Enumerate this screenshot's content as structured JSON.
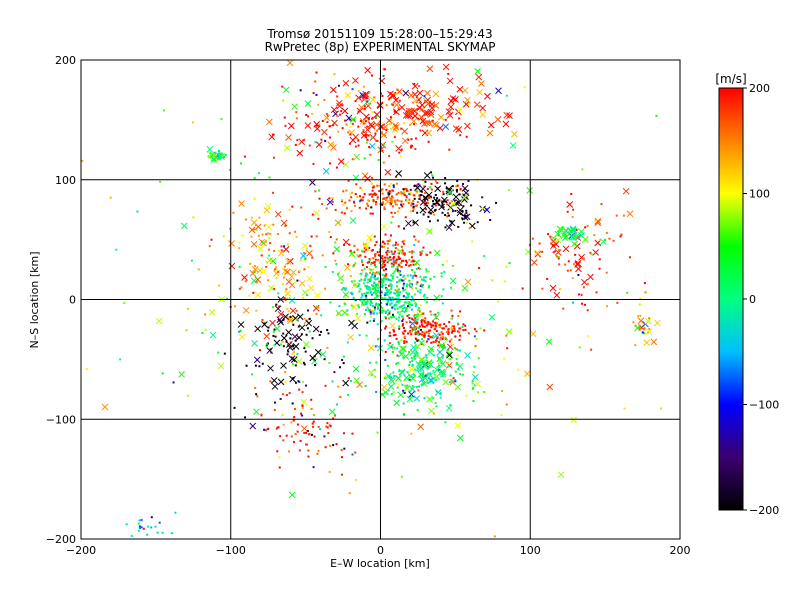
{
  "chart_data": {
    "type": "scatter",
    "title": "Tromsø 20151109 15:28:00–15:29:43",
    "subtitle": "RwPretec (8p) EXPERIMENTAL SKYMAP",
    "xlabel": "E–W location [km]",
    "ylabel": "N–S location [km]",
    "xlim": [
      -200,
      200
    ],
    "ylim": [
      -200,
      200
    ],
    "x_ticks": [
      "−200",
      "−100",
      "0",
      "100",
      "200"
    ],
    "y_ticks": [
      "−200",
      "−100",
      "0",
      "100",
      "200"
    ],
    "grid": true,
    "colorbar": {
      "label": "[m/s]",
      "range": [
        -200,
        200
      ],
      "ticks": [
        "200",
        "100",
        "0",
        "−100",
        "−200"
      ],
      "colors": [
        "#000000",
        "#3a0070",
        "#0000ff",
        "#00bfff",
        "#00ff80",
        "#00ff00",
        "#ffff00",
        "#ff8000",
        "#ff0000"
      ]
    },
    "clusters": [
      {
        "region": "north",
        "x_center": -10,
        "y_center": 150,
        "x_spread": 60,
        "y_spread": 35,
        "velocity": 195,
        "count": 260,
        "marker": "mixed"
      },
      {
        "region": "north-east",
        "x_center": 40,
        "y_center": 160,
        "x_spread": 55,
        "y_spread": 30,
        "velocity": 190,
        "count": 70,
        "marker": "x"
      },
      {
        "region": "upper-center",
        "x_center": 10,
        "y_center": 85,
        "x_spread": 40,
        "y_spread": 15,
        "velocity": 180,
        "count": 220,
        "marker": "dot"
      },
      {
        "region": "upper-center-dark",
        "x_center": 40,
        "y_center": 80,
        "x_spread": 30,
        "y_spread": 20,
        "velocity": -195,
        "count": 120,
        "marker": "mixed"
      },
      {
        "region": "center-north",
        "x_center": 5,
        "y_center": 35,
        "x_spread": 25,
        "y_spread": 18,
        "velocity": 200,
        "count": 200,
        "marker": "dot"
      },
      {
        "region": "center",
        "x_center": 5,
        "y_center": 5,
        "x_spread": 30,
        "y_spread": 25,
        "velocity": 0,
        "count": 450,
        "marker": "dot"
      },
      {
        "region": "center-south",
        "x_center": 30,
        "y_center": -25,
        "x_spread": 30,
        "y_spread": 15,
        "velocity": 200,
        "count": 200,
        "marker": "dot"
      },
      {
        "region": "south",
        "x_center": 25,
        "y_center": -60,
        "x_spread": 35,
        "y_spread": 30,
        "velocity": 20,
        "count": 250,
        "marker": "mixed"
      },
      {
        "region": "south-west",
        "x_center": -50,
        "y_center": -110,
        "x_spread": 30,
        "y_spread": 40,
        "velocity": 195,
        "count": 90,
        "marker": "dot"
      },
      {
        "region": "west",
        "x_center": -70,
        "y_center": 30,
        "x_spread": 40,
        "y_spread": 60,
        "velocity": 150,
        "count": 150,
        "marker": "mixed"
      },
      {
        "region": "west-dark",
        "x_center": -60,
        "y_center": -40,
        "x_spread": 35,
        "y_spread": 40,
        "velocity": -200,
        "count": 110,
        "marker": "mixed"
      },
      {
        "region": "north-west-green",
        "x_center": -110,
        "y_center": 120,
        "x_spread": 6,
        "y_spread": 4,
        "velocity": 20,
        "count": 40,
        "marker": "mixed"
      },
      {
        "region": "east",
        "x_center": 130,
        "y_center": 40,
        "x_spread": 35,
        "y_spread": 50,
        "velocity": 190,
        "count": 90,
        "marker": "mixed"
      },
      {
        "region": "east-green",
        "x_center": 125,
        "y_center": 55,
        "x_spread": 12,
        "y_spread": 8,
        "velocity": 30,
        "count": 25,
        "marker": "x"
      },
      {
        "region": "far-east",
        "x_center": 175,
        "y_center": -20,
        "x_spread": 10,
        "y_spread": 25,
        "velocity": 130,
        "count": 25,
        "marker": "mixed"
      },
      {
        "region": "scattered",
        "x_center": 0,
        "y_center": 0,
        "x_spread": 160,
        "y_spread": 160,
        "velocity": 80,
        "count": 260,
        "marker": "mixed"
      },
      {
        "region": "far-south-west",
        "x_center": -155,
        "y_center": -190,
        "x_spread": 15,
        "y_spread": 10,
        "velocity": -40,
        "count": 20,
        "marker": "dot"
      }
    ]
  }
}
